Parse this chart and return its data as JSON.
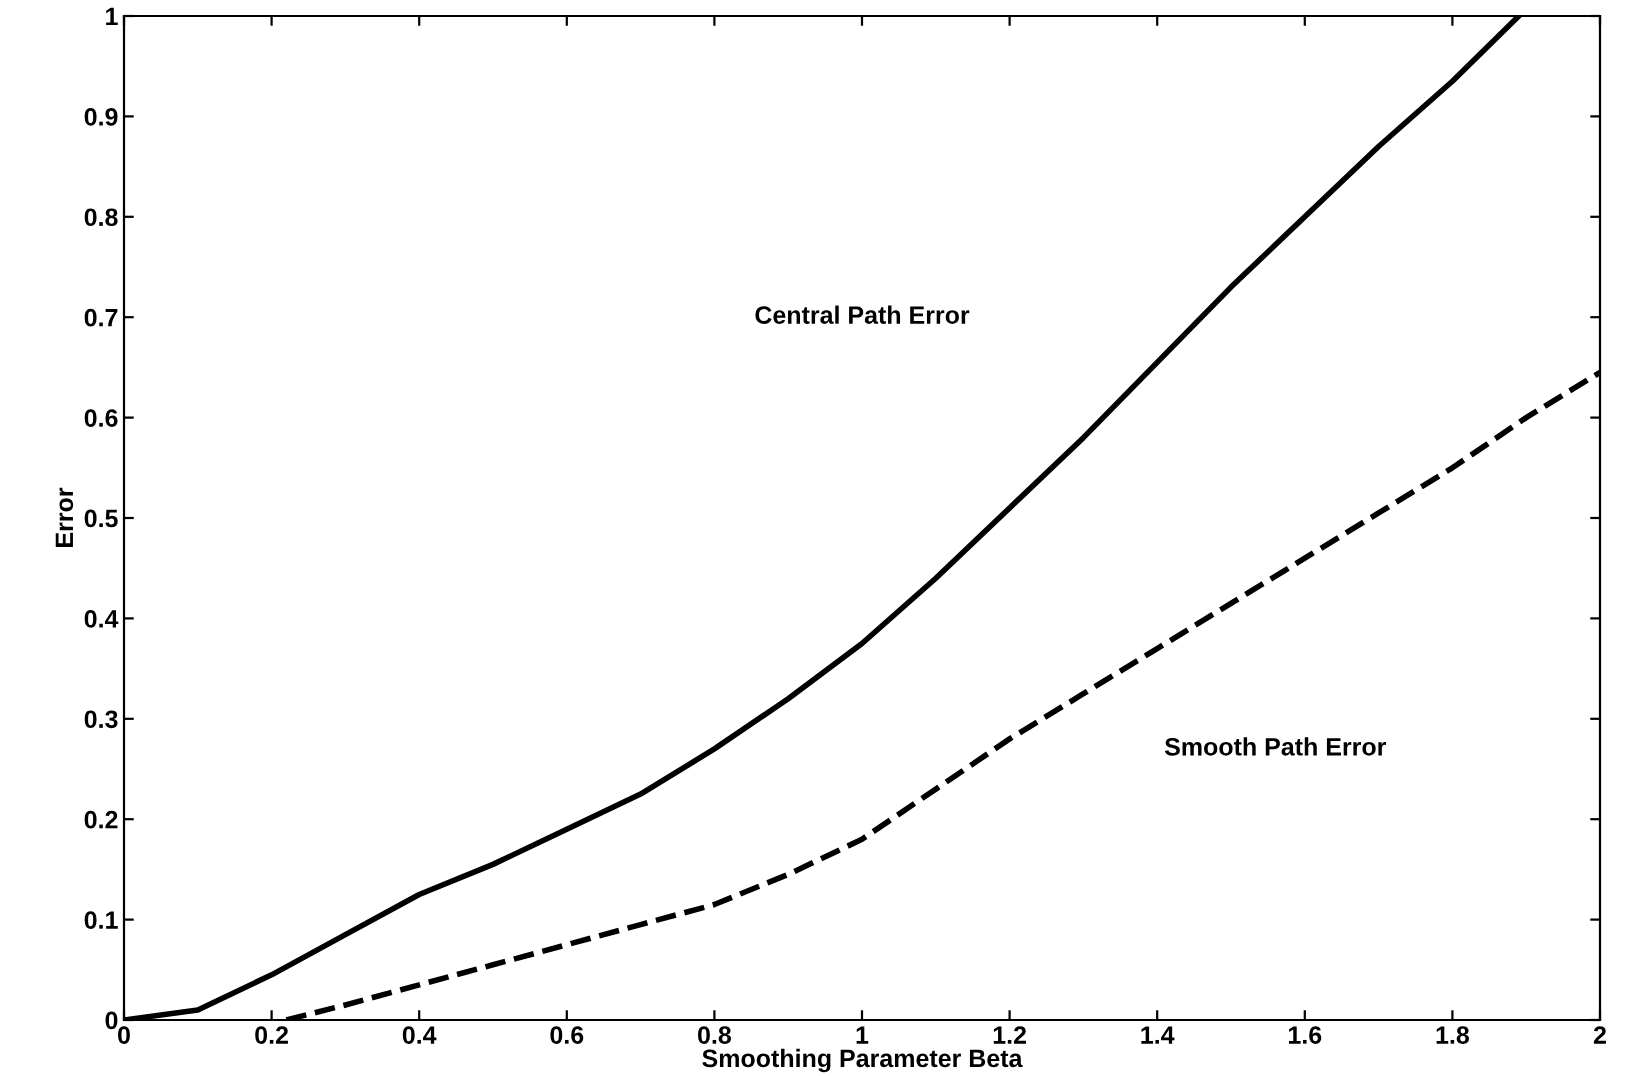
{
  "chart_data": {
    "type": "line",
    "xlabel": "Smoothing Parameter Beta",
    "ylabel": "Error",
    "xlim": [
      0,
      2
    ],
    "ylim": [
      0,
      1
    ],
    "xticks": [
      0,
      0.2,
      0.4,
      0.6,
      0.8,
      1,
      1.2,
      1.4,
      1.6,
      1.8,
      2
    ],
    "yticks": [
      0,
      0.1,
      0.2,
      0.3,
      0.4,
      0.5,
      0.6,
      0.7,
      0.8,
      0.9,
      1
    ],
    "grid": false,
    "legend": false,
    "series": [
      {
        "color": "#000000",
        "line_style": "solid",
        "x": [
          0,
          0.1,
          0.2,
          0.3,
          0.4,
          0.5,
          0.6,
          0.7,
          0.8,
          0.9,
          1.0,
          1.1,
          1.2,
          1.3,
          1.4,
          1.5,
          1.6,
          1.7,
          1.8,
          1.89
        ],
        "values": [
          0,
          0.01,
          0.045,
          0.085,
          0.125,
          0.155,
          0.19,
          0.225,
          0.27,
          0.32,
          0.375,
          0.44,
          0.51,
          0.58,
          0.655,
          0.73,
          0.8,
          0.87,
          0.935,
          1.0
        ]
      },
      {
        "color": "#000000",
        "line_style": "dashed",
        "x": [
          0.22,
          0.3,
          0.4,
          0.5,
          0.6,
          0.7,
          0.8,
          0.9,
          1.0,
          1.1,
          1.2,
          1.3,
          1.4,
          1.5,
          1.6,
          1.7,
          1.8,
          1.9,
          2.0
        ],
        "values": [
          0,
          0.015,
          0.035,
          0.055,
          0.075,
          0.095,
          0.115,
          0.145,
          0.18,
          0.23,
          0.28,
          0.325,
          0.37,
          0.415,
          0.46,
          0.505,
          0.55,
          0.6,
          0.645
        ]
      }
    ],
    "annotations": [
      "Central Path Error",
      "Smooth Path Error"
    ]
  }
}
